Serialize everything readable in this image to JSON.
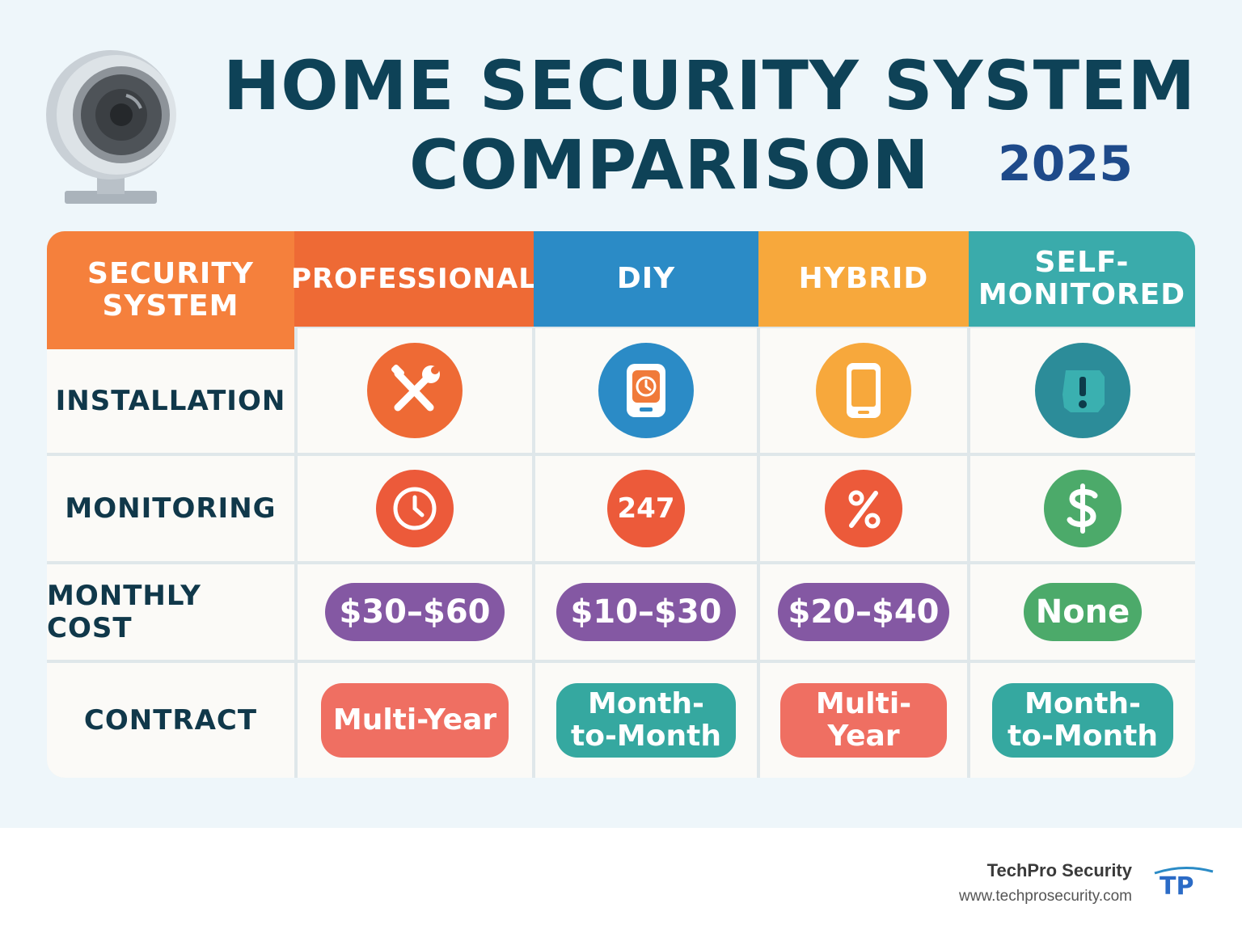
{
  "header": {
    "title_line1": "HOME SECURITY SYSTEM",
    "title_line2": "COMPARISON",
    "year": "2025",
    "camera_icon": "security-camera-icon"
  },
  "table": {
    "corner_label_1": "SECURITY",
    "corner_label_2": "SYSTEM",
    "columns": [
      {
        "line1": "PROFESSIONAL",
        "line2": "",
        "color": "#ee6a35"
      },
      {
        "line1": "DIY",
        "line2": "",
        "color": "#2b8bc6"
      },
      {
        "line1": "HYBRID",
        "line2": "",
        "color": "#f7a83c"
      },
      {
        "line1": "SELF-",
        "line2": "MONITORED",
        "color": "#3aabab"
      }
    ],
    "corner_color": "#f5803c",
    "rows": {
      "installation": {
        "label": "INSTALLATION",
        "icons": [
          {
            "name": "tools-icon",
            "color": "#ee6a35"
          },
          {
            "name": "smart-panel-icon",
            "color": "#2b8bc6"
          },
          {
            "name": "smartphone-icon",
            "color": "#f7a83c"
          },
          {
            "name": "alert-shield-icon",
            "color": "#2c8c99"
          }
        ]
      },
      "monitoring": {
        "label": "MONITORING",
        "icons": [
          {
            "name": "clock-icon",
            "color": "#ec5a3a",
            "text": ""
          },
          {
            "name": "round-the-clock-icon",
            "color": "#ec5a3a",
            "text": "247"
          },
          {
            "name": "percent-icon",
            "color": "#ec5a3a",
            "text": ""
          },
          {
            "name": "dollar-icon",
            "color": "#4caa6a",
            "text": ""
          }
        ]
      },
      "monthly_cost": {
        "label": "MONTHLY COST",
        "values": [
          {
            "text": "$30–$60",
            "color": "#8458a3"
          },
          {
            "text": "$10–$30",
            "color": "#8458a3"
          },
          {
            "text": "$20–$40",
            "color": "#8458a3"
          },
          {
            "text": "None",
            "color": "#4caa6a"
          }
        ]
      },
      "contract": {
        "label": "CONTRACT",
        "values": [
          {
            "line1": "Multi-Year",
            "line2": "",
            "color": "#ef6f62"
          },
          {
            "line1": "Month-",
            "line2": "to-Month",
            "color": "#35a8a0"
          },
          {
            "line1": "Multi-",
            "line2": "Year",
            "color": "#ef6f62"
          },
          {
            "line1": "Month-",
            "line2": "to-Month",
            "color": "#35a8a0"
          }
        ]
      }
    }
  },
  "footer": {
    "brand_name": "TechPro Security",
    "brand_url": "www.techprosecurity.com",
    "logo_text": "TP"
  }
}
